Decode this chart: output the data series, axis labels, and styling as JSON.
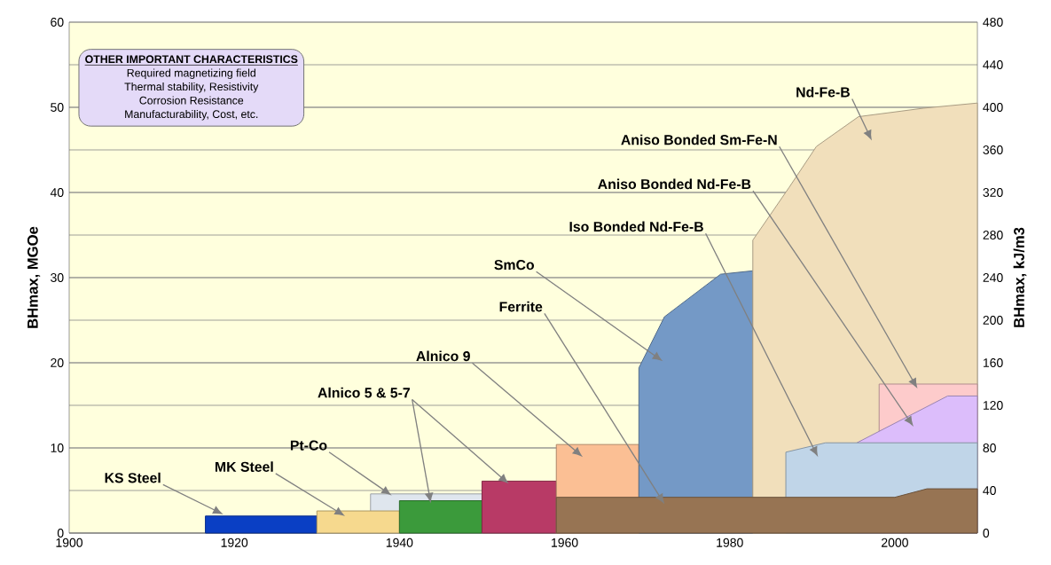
{
  "chart_data": {
    "type": "area",
    "xlabel": null,
    "ylabel": "BHmax, MGOe",
    "y2label": "BHmax, kJ/m3",
    "xlim": [
      1900,
      2010
    ],
    "xticks": [
      1900,
      1920,
      1940,
      1960,
      1980,
      2000
    ],
    "ylim": [
      0,
      60
    ],
    "yticks": [
      0,
      10,
      20,
      30,
      40,
      50,
      60
    ],
    "y2lim": [
      0,
      480
    ],
    "y2ticks": [
      0,
      40,
      80,
      120,
      160,
      200,
      240,
      280,
      320,
      360,
      400,
      440,
      480
    ],
    "grid": "y",
    "series": [
      {
        "name": "KS Steel",
        "color": "#0a3fc4",
        "x": [
          1916.5,
          1930
        ],
        "values": [
          2.0,
          2.0
        ]
      },
      {
        "name": "Pt-Co",
        "color": "#dfe6ee",
        "x": [
          1936.5,
          1950
        ],
        "values": [
          4.6,
          4.6
        ]
      },
      {
        "name": "MK Steel",
        "color": "#f6d98e",
        "x": [
          1930,
          1940
        ],
        "values": [
          2.6,
          2.6
        ]
      },
      {
        "name": "Alnico 5 & 5-7",
        "color": "#3b9a3b",
        "x": [
          1940,
          1950
        ],
        "values": [
          3.8,
          3.8
        ]
      },
      {
        "color": "#b83a66",
        "x": [
          1950,
          1959
        ],
        "values": [
          6.1,
          6.1
        ]
      },
      {
        "name": "Alnico 9",
        "color": "#fbbf94",
        "x": [
          1959,
          1969
        ],
        "values": [
          10.4,
          10.4
        ]
      },
      {
        "name": "SmCo",
        "color": "#7499c6",
        "x": [
          1969,
          1972.1,
          1978.9,
          1982.8
        ],
        "values": [
          19.4,
          25.4,
          30.4,
          30.8
        ]
      },
      {
        "name": "Nd-Fe-B",
        "color": "#f1dfbb",
        "x": [
          1982.8,
          1987.2,
          1990.5,
          1995.6,
          2003.5,
          2010
        ],
        "values": [
          34.4,
          40.6,
          45.4,
          48.9,
          49.9,
          50.5
        ]
      },
      {
        "name": "Aniso Bonded Sm-Fe-N",
        "color": "#fdcbcb",
        "x": [
          1998.1,
          2010
        ],
        "values": [
          17.5,
          17.5
        ]
      },
      {
        "name": "Aniso Bonded Nd-Fe-B",
        "color": "#dcbdfb",
        "x": [
          1995.4,
          2006.4,
          2010
        ],
        "values": [
          10.6,
          16.1,
          16.1
        ]
      },
      {
        "name": "Iso Bonded Nd-Fe-B",
        "color": "#c0d5e8",
        "x": [
          1986.8,
          1991.6,
          2010
        ],
        "values": [
          9.5,
          10.6,
          10.6
        ]
      },
      {
        "name": "Ferrite",
        "color": "#977453",
        "x": [
          1959,
          2000,
          2003.9,
          2010
        ],
        "values": [
          4.2,
          4.2,
          5.2,
          5.2
        ]
      }
    ],
    "annotations": [
      "OTHER IMPORTANT CHARACTERISTICS",
      "Required magnetizing field",
      "Thermal stability, Resistivity",
      "Corrosion Resistance",
      "Manufacturability, Cost, etc."
    ]
  }
}
